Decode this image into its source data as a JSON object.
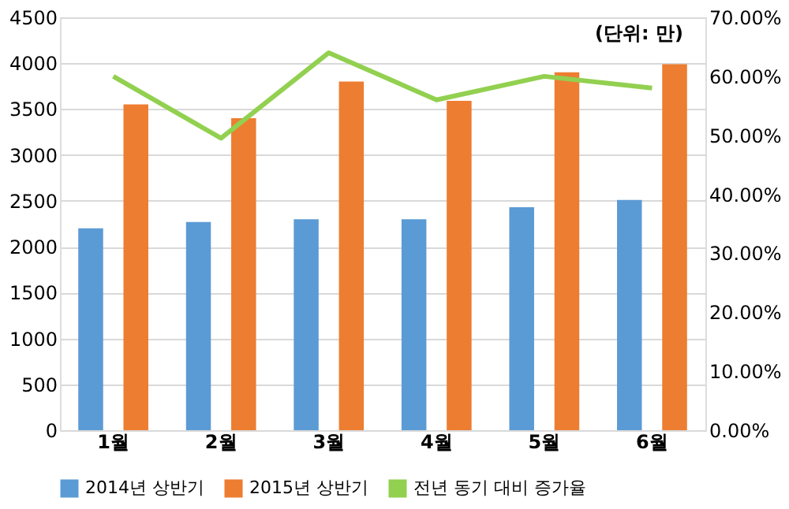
{
  "chart_data": {
    "type": "bar",
    "categories": [
      "1월",
      "2월",
      "3월",
      "4월",
      "5월",
      "6월"
    ],
    "series": [
      {
        "name": "2014년 상반기",
        "color": "#5b9bd5",
        "values": [
          2200,
          2270,
          2300,
          2300,
          2430,
          2510
        ]
      },
      {
        "name": "2015년 상반기",
        "color": "#ed7d31",
        "values": [
          3550,
          3400,
          3800,
          3590,
          3900,
          3990
        ]
      },
      {
        "name": "전년 동기 대비 증가율",
        "type": "line",
        "axis": "y2",
        "color": "#92d050",
        "values": [
          60,
          49.5,
          64,
          56,
          60,
          58
        ]
      }
    ],
    "ylim": [
      0,
      4500
    ],
    "yticks": [
      0,
      500,
      1000,
      1500,
      2000,
      2500,
      3000,
      3500,
      4000,
      4500
    ],
    "y2lim": [
      0,
      70
    ],
    "y2ticks": [
      {
        "value": 0,
        "label": "0.00%"
      },
      {
        "value": 10,
        "label": "10.00%"
      },
      {
        "value": 20,
        "label": "20.00%"
      },
      {
        "value": 30,
        "label": "30.00%"
      },
      {
        "value": 40,
        "label": "40.00%"
      },
      {
        "value": 50,
        "label": "50.00%"
      },
      {
        "value": 60,
        "label": "60.00%"
      },
      {
        "value": 70,
        "label": "70.00%"
      }
    ],
    "annotations": [
      "(단위: 만)"
    ],
    "grid": "y",
    "legend": "bottom"
  }
}
